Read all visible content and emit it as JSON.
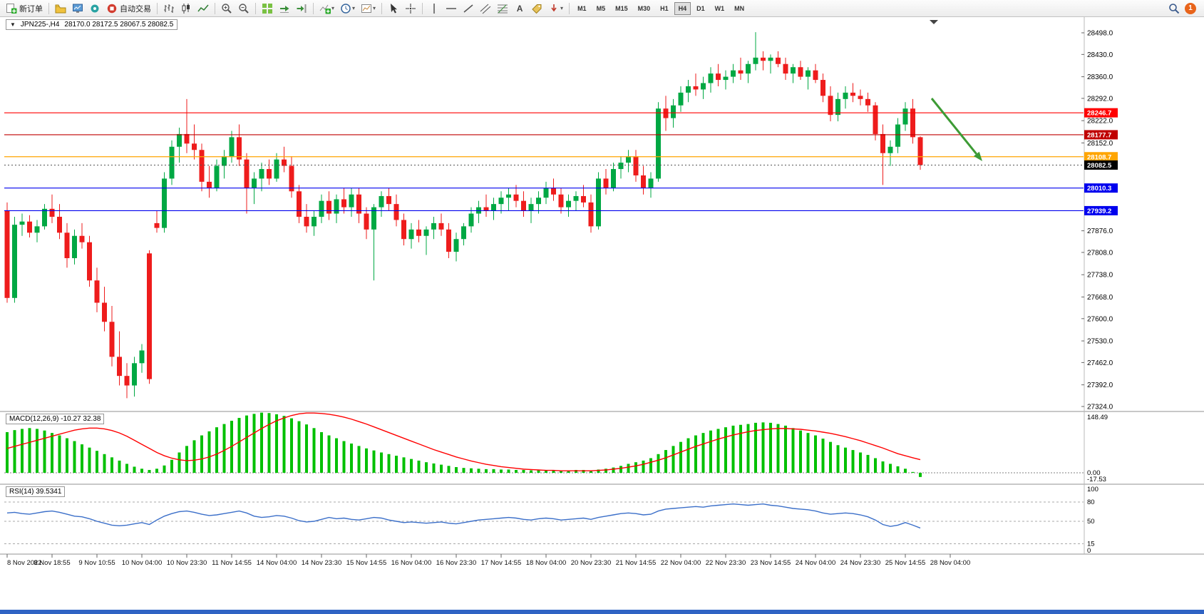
{
  "toolbar": {
    "new_order": "新订单",
    "auto_trading": "自动交易",
    "timeframes": [
      "M1",
      "M5",
      "M15",
      "M30",
      "H1",
      "H4",
      "D1",
      "W1",
      "MN"
    ],
    "active_timeframe": "H4",
    "notification_count": "1"
  },
  "icons": {
    "caret_down": "▾",
    "collapse_arrow": "▼"
  },
  "chart": {
    "symbol_period": "JPN225-,H4",
    "ohlc": "28170.0 28172.5 28067.5 28082.5"
  },
  "indicators": {
    "macd_label": "MACD(12,26,9) -10.27 32.38",
    "rsi_label": "RSI(14) 39.5341"
  },
  "chart_data": [
    {
      "type": "candlestick",
      "title": "JPN225-,H4",
      "ohlc_current": {
        "open": 28170.0,
        "high": 28172.5,
        "low": 28067.5,
        "close": 28082.5
      },
      "y_range": [
        27324.0,
        28498.0
      ],
      "y_ticks": [
        28498.0,
        28430.0,
        28360.0,
        28292.0,
        28222.0,
        28152.0,
        27876.0,
        27808.0,
        27738.0,
        27668.0,
        27600.0,
        27530.0,
        27462.0,
        27392.0,
        27324.0
      ],
      "price_lines": [
        {
          "value": 28246.7,
          "color": "#ff0000",
          "type": "solid"
        },
        {
          "value": 28177.7,
          "color": "#c00000",
          "type": "solid"
        },
        {
          "value": 28108.7,
          "color": "#ffa500",
          "type": "solid"
        },
        {
          "value": 28082.5,
          "color": "#000000",
          "type": "current"
        },
        {
          "value": 28010.3,
          "color": "#0000ee",
          "type": "solid"
        },
        {
          "value": 27939.2,
          "color": "#0000ee",
          "type": "solid"
        }
      ],
      "up_color": "#00a843",
      "down_color": "#ee1c1c",
      "annotation_arrow": {
        "from": [
          1307,
          114
        ],
        "to": [
          1378,
          202
        ],
        "color": "#3d9b35"
      },
      "candles": [
        [
          27940,
          27965,
          27650,
          27665
        ],
        [
          27665,
          27920,
          27650,
          27895
        ],
        [
          27895,
          27930,
          27860,
          27905
        ],
        [
          27905,
          27925,
          27855,
          27870
        ],
        [
          27870,
          27910,
          27840,
          27890
        ],
        [
          27890,
          27960,
          27880,
          27945
        ],
        [
          27945,
          27990,
          27900,
          27920
        ],
        [
          27920,
          27960,
          27850,
          27870
        ],
        [
          27870,
          27900,
          27760,
          27790
        ],
        [
          27790,
          27880,
          27770,
          27860
        ],
        [
          27860,
          27900,
          27820,
          27840
        ],
        [
          27840,
          27860,
          27700,
          27720
        ],
        [
          27720,
          27760,
          27620,
          27650
        ],
        [
          27650,
          27700,
          27560,
          27590
        ],
        [
          27590,
          27640,
          27450,
          27480
        ],
        [
          27480,
          27560,
          27390,
          27420
        ],
        [
          27420,
          27460,
          27350,
          27390
        ],
        [
          27390,
          27480,
          27355,
          27460
        ],
        [
          27460,
          27520,
          27430,
          27500
        ],
        [
          27805,
          27815,
          27395,
          27410
        ],
        [
          27900,
          27940,
          27870,
          27885
        ],
        [
          27885,
          28060,
          27870,
          28040
        ],
        [
          28040,
          28160,
          28020,
          28140
        ],
        [
          28140,
          28200,
          28090,
          28180
        ],
        [
          28180,
          28290,
          28120,
          28150
        ],
        [
          28150,
          28210,
          28100,
          28130
        ],
        [
          28130,
          28150,
          28000,
          28030
        ],
        [
          28030,
          28080,
          27980,
          28010
        ],
        [
          28010,
          28100,
          28000,
          28080
        ],
        [
          28080,
          28130,
          28040,
          28110
        ],
        [
          28110,
          28190,
          28090,
          28170
        ],
        [
          28170,
          28210,
          28080,
          28100
        ],
        [
          28100,
          28120,
          27930,
          28010
        ],
        [
          28010,
          28060,
          27960,
          28040
        ],
        [
          28040,
          28090,
          28000,
          28070
        ],
        [
          28070,
          28100,
          28020,
          28040
        ],
        [
          28040,
          28120,
          28030,
          28100
        ],
        [
          28100,
          28140,
          28060,
          28080
        ],
        [
          28080,
          28110,
          27980,
          28000
        ],
        [
          28000,
          28020,
          27900,
          27920
        ],
        [
          27920,
          27960,
          27870,
          27890
        ],
        [
          27890,
          27940,
          27860,
          27920
        ],
        [
          27920,
          27990,
          27900,
          27970
        ],
        [
          27970,
          28000,
          27910,
          27930
        ],
        [
          27930,
          27990,
          27900,
          27975
        ],
        [
          27975,
          28010,
          27930,
          27950
        ],
        [
          27950,
          28010,
          27920,
          27990
        ],
        [
          27990,
          28010,
          27900,
          27930
        ],
        [
          27930,
          27950,
          27850,
          27880
        ],
        [
          27880,
          27960,
          27720,
          27950
        ],
        [
          27950,
          28000,
          27920,
          27985
        ],
        [
          27985,
          28010,
          27940,
          27960
        ],
        [
          27960,
          27990,
          27890,
          27910
        ],
        [
          27910,
          27930,
          27830,
          27850
        ],
        [
          27850,
          27900,
          27820,
          27880
        ],
        [
          27880,
          27910,
          27840,
          27860
        ],
        [
          27860,
          27890,
          27800,
          27880
        ],
        [
          27880,
          27920,
          27850,
          27900
        ],
        [
          27900,
          27930,
          27860,
          27880
        ],
        [
          27880,
          27900,
          27790,
          27810
        ],
        [
          27810,
          27870,
          27780,
          27850
        ],
        [
          27850,
          27900,
          27830,
          27890
        ],
        [
          27890,
          27950,
          27870,
          27930
        ],
        [
          27930,
          27970,
          27900,
          27950
        ],
        [
          27950,
          27990,
          27920,
          27940
        ],
        [
          27940,
          27980,
          27910,
          27960
        ],
        [
          27960,
          28000,
          27930,
          27980
        ],
        [
          27980,
          28010,
          27940,
          27990
        ],
        [
          27990,
          28020,
          27950,
          27970
        ],
        [
          27970,
          28000,
          27920,
          27940
        ],
        [
          27940,
          27980,
          27900,
          27960
        ],
        [
          27960,
          28000,
          27930,
          27980
        ],
        [
          27980,
          28030,
          27960,
          28010
        ],
        [
          28010,
          28040,
          27970,
          27990
        ],
        [
          27990,
          28010,
          27930,
          27950
        ],
        [
          27950,
          27990,
          27920,
          27970
        ],
        [
          27970,
          28000,
          27940,
          27985
        ],
        [
          27985,
          28020,
          27950,
          27965
        ],
        [
          27965,
          27990,
          27870,
          27890
        ],
        [
          27890,
          28060,
          27880,
          28040
        ],
        [
          28040,
          28070,
          27990,
          28010
        ],
        [
          28010,
          28090,
          28000,
          28070
        ],
        [
          28070,
          28110,
          28040,
          28090
        ],
        [
          28090,
          28130,
          28060,
          28110
        ],
        [
          28110,
          28130,
          28030,
          28050
        ],
        [
          28050,
          28080,
          27990,
          28010
        ],
        [
          28010,
          28060,
          27980,
          28040
        ],
        [
          28040,
          28280,
          28030,
          28260
        ],
        [
          28260,
          28300,
          28190,
          28230
        ],
        [
          28230,
          28290,
          28200,
          28270
        ],
        [
          28270,
          28330,
          28250,
          28310
        ],
        [
          28310,
          28350,
          28280,
          28330
        ],
        [
          28330,
          28370,
          28300,
          28320
        ],
        [
          28320,
          28360,
          28290,
          28340
        ],
        [
          28340,
          28390,
          28310,
          28370
        ],
        [
          28370,
          28400,
          28330,
          28350
        ],
        [
          28350,
          28380,
          28320,
          28360
        ],
        [
          28360,
          28400,
          28340,
          28380
        ],
        [
          28380,
          28420,
          28350,
          28370
        ],
        [
          28370,
          28410,
          28340,
          28400
        ],
        [
          28400,
          28500,
          28380,
          28420
        ],
        [
          28420,
          28440,
          28380,
          28410
        ],
        [
          28410,
          28430,
          28370,
          28420
        ],
        [
          28420,
          28440,
          28390,
          28400
        ],
        [
          28400,
          28420,
          28350,
          28370
        ],
        [
          28370,
          28400,
          28340,
          28390
        ],
        [
          28390,
          28410,
          28350,
          28360
        ],
        [
          28360,
          28390,
          28320,
          28380
        ],
        [
          28380,
          28400,
          28340,
          28350
        ],
        [
          28350,
          28370,
          28280,
          28300
        ],
        [
          28300,
          28330,
          28220,
          28240
        ],
        [
          28240,
          28310,
          28220,
          28290
        ],
        [
          28290,
          28330,
          28260,
          28310
        ],
        [
          28310,
          28340,
          28280,
          28300
        ],
        [
          28300,
          28320,
          28270,
          28290
        ],
        [
          28290,
          28310,
          28250,
          28270
        ],
        [
          28270,
          28280,
          28160,
          28180
        ],
        [
          28180,
          28210,
          28020,
          28120
        ],
        [
          28120,
          28160,
          28080,
          28140
        ],
        [
          28140,
          28230,
          28120,
          28210
        ],
        [
          28210,
          28280,
          28190,
          28260
        ],
        [
          28260,
          28290,
          28150,
          28170
        ],
        [
          28170,
          28172.5,
          28067.5,
          28082.5
        ]
      ]
    },
    {
      "type": "bar",
      "name": "MACD",
      "label": "MACD(12,26,9) -10.27 32.38",
      "params": "12,26,9",
      "current_values": [
        -10.27,
        32.38
      ],
      "y_ticks": [
        "148.49",
        "0.00",
        "-17.53"
      ],
      "histogram_color": "#00c000",
      "signal_color": "#ff0000",
      "histogram": [
        100,
        105,
        108,
        110,
        108,
        104,
        98,
        92,
        85,
        78,
        70,
        62,
        54,
        46,
        38,
        30,
        22,
        15,
        10,
        7,
        10,
        18,
        32,
        50,
        66,
        80,
        92,
        102,
        112,
        120,
        128,
        135,
        141,
        145,
        148,
        147,
        144,
        140,
        134,
        127,
        119,
        110,
        100,
        92,
        85,
        78,
        72,
        66,
        60,
        55,
        50,
        46,
        42,
        38,
        34,
        30,
        26,
        23,
        20,
        17,
        14,
        12,
        11,
        10,
        9,
        9,
        8,
        8,
        7,
        7,
        6,
        6,
        7,
        7,
        6,
        6,
        7,
        7,
        6,
        8,
        10,
        13,
        17,
        22,
        26,
        30,
        36,
        46,
        56,
        66,
        76,
        85,
        92,
        98,
        104,
        108,
        112,
        116,
        118,
        120,
        123,
        124,
        123,
        120,
        116,
        110,
        104,
        98,
        92,
        84,
        76,
        68,
        62,
        56,
        50,
        44,
        36,
        28,
        22,
        16,
        10,
        2,
        -10.27
      ],
      "signal": [
        60,
        65,
        70,
        75,
        80,
        85,
        90,
        95,
        100,
        105,
        108,
        110,
        110,
        108,
        104,
        98,
        90,
        80,
        70,
        60,
        50,
        42,
        36,
        32,
        30,
        31,
        34,
        39,
        46,
        55,
        65,
        76,
        87,
        98,
        109,
        119,
        128,
        135,
        141,
        145,
        147,
        147,
        146,
        144,
        141,
        137,
        132,
        126,
        120,
        113,
        106,
        99,
        92,
        85,
        78,
        71,
        64,
        57,
        51,
        45,
        39,
        34,
        29,
        25,
        21,
        18,
        15,
        13,
        11,
        9,
        8,
        7,
        6,
        6,
        5,
        5,
        5,
        5,
        5,
        6,
        7,
        9,
        11,
        14,
        17,
        21,
        26,
        31,
        37,
        44,
        51,
        58,
        65,
        71,
        77,
        83,
        88,
        93,
        97,
        101,
        104,
        106,
        108,
        109,
        109,
        108,
        107,
        105,
        103,
        100,
        97,
        93,
        89,
        84,
        79,
        73,
        67,
        61,
        54,
        47,
        42,
        37,
        32.38
      ]
    },
    {
      "type": "line",
      "name": "RSI",
      "label": "RSI(14) 39.5341",
      "current_value": 39.5341,
      "y_ticks": [
        100,
        80,
        50,
        15,
        0
      ],
      "levels": [
        80,
        50,
        15
      ],
      "line_color": "#3b6fc9",
      "values": [
        63,
        64,
        62,
        61,
        63,
        65,
        66,
        64,
        61,
        58,
        57,
        54,
        50,
        47,
        44,
        43,
        44,
        46,
        48,
        45,
        52,
        58,
        62,
        65,
        66,
        64,
        61,
        59,
        60,
        62,
        64,
        66,
        63,
        58,
        56,
        57,
        59,
        58,
        55,
        51,
        49,
        50,
        53,
        56,
        54,
        55,
        53,
        52,
        54,
        56,
        55,
        52,
        50,
        48,
        49,
        48,
        47,
        48,
        49,
        47,
        46,
        48,
        50,
        52,
        53,
        54,
        55,
        56,
        55,
        53,
        52,
        54,
        55,
        54,
        52,
        53,
        54,
        55,
        53,
        56,
        58,
        60,
        62,
        63,
        62,
        60,
        61,
        66,
        69,
        70,
        71,
        72,
        73,
        72,
        74,
        75,
        76,
        77,
        76,
        75,
        76,
        77,
        75,
        74,
        72,
        70,
        69,
        68,
        66,
        63,
        61,
        62,
        63,
        62,
        60,
        57,
        52,
        45,
        42,
        44,
        48,
        44,
        39.53
      ]
    }
  ],
  "time_axis": {
    "labels": [
      "8 Nov 2022",
      "8 Nov 18:55",
      "9 Nov 10:55",
      "10 Nov 04:00",
      "10 Nov 23:30",
      "11 Nov 14:55",
      "14 Nov 04:00",
      "14 Nov 23:30",
      "15 Nov 14:55",
      "16 Nov 04:00",
      "16 Nov 23:30",
      "17 Nov 14:55",
      "18 Nov 04:00",
      "20 Nov 23:30",
      "21 Nov 14:55",
      "22 Nov 04:00",
      "22 Nov 23:30",
      "23 Nov 14:55",
      "24 Nov 04:00",
      "24 Nov 23:30",
      "25 Nov 14:55",
      "28 Nov 04:00"
    ]
  }
}
